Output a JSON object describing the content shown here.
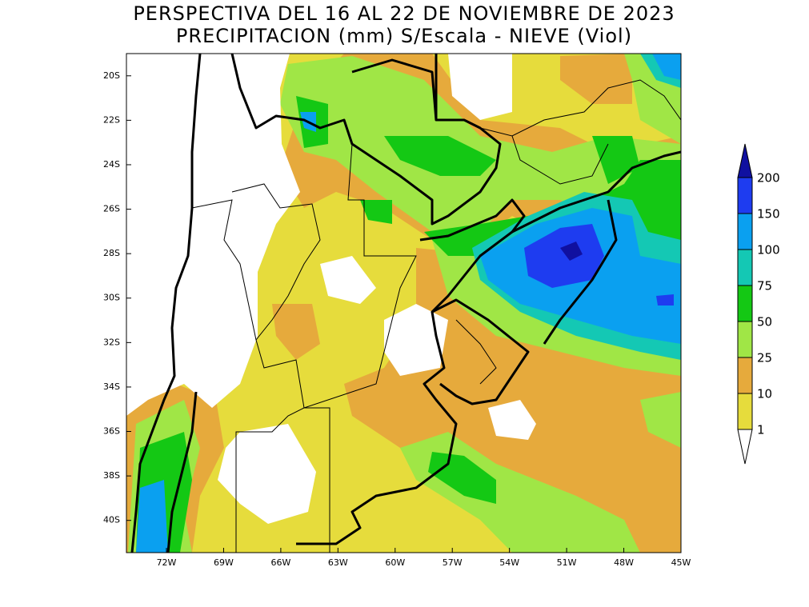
{
  "title": [
    "PERSPECTIVA DEL 16 AL 22 DE NOVIEMBRE DE 2023",
    "PRECIPITACION (mm) S/Escala - NIEVE (Viol)"
  ],
  "map": {
    "xlim": [
      -74.1,
      -45
    ],
    "ylim": [
      -41.45,
      -19
    ],
    "xticks": [
      {
        "value": -72,
        "label": "72W"
      },
      {
        "value": -69,
        "label": "69W"
      },
      {
        "value": -66,
        "label": "66W"
      },
      {
        "value": -63,
        "label": "63W"
      },
      {
        "value": -60,
        "label": "60W"
      },
      {
        "value": -57,
        "label": "57W"
      },
      {
        "value": -54,
        "label": "54W"
      },
      {
        "value": -51,
        "label": "51W"
      },
      {
        "value": -48,
        "label": "48W"
      },
      {
        "value": -45,
        "label": "45W"
      }
    ],
    "yticks": [
      {
        "value": -20,
        "label": "20S"
      },
      {
        "value": -22,
        "label": "22S"
      },
      {
        "value": -24,
        "label": "24S"
      },
      {
        "value": -26,
        "label": "26S"
      },
      {
        "value": -28,
        "label": "28S"
      },
      {
        "value": -30,
        "label": "30S"
      },
      {
        "value": -32,
        "label": "32S"
      },
      {
        "value": -34,
        "label": "34S"
      },
      {
        "value": -36,
        "label": "36S"
      },
      {
        "value": -38,
        "label": "38S"
      },
      {
        "value": -40,
        "label": "40S"
      }
    ]
  },
  "colorbar": {
    "levels": [
      1,
      10,
      25,
      50,
      75,
      100,
      150,
      200
    ],
    "colors": [
      "#ffffff",
      "#e6dc3c",
      "#e6aa3c",
      "#a0e646",
      "#14c814",
      "#14c8b4",
      "#0aa0f0",
      "#1e3cf0",
      "#1010a0"
    ]
  }
}
